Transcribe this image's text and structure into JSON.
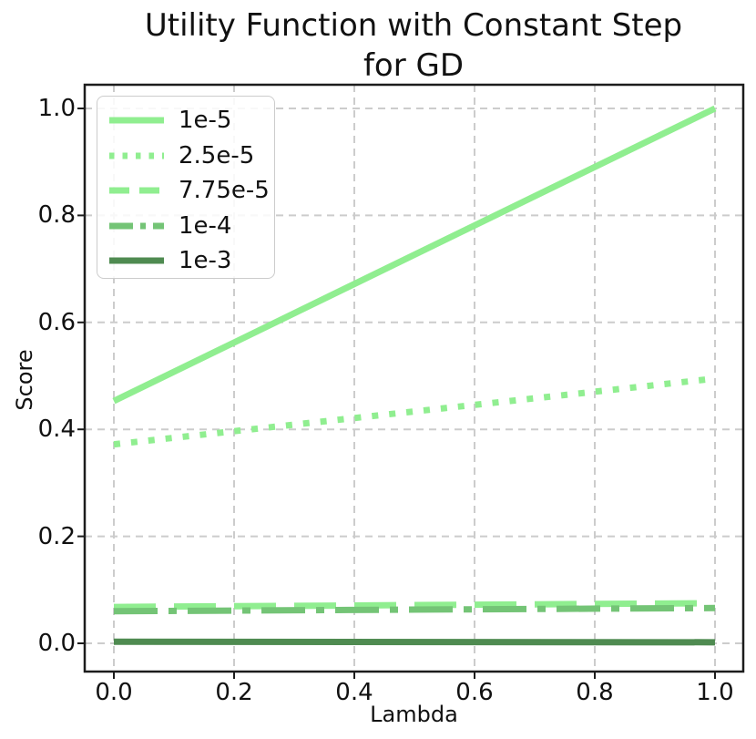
{
  "chart_data": {
    "type": "line",
    "title": "Utility Function with Constant Step\nfor GD",
    "xlabel": "Lambda",
    "ylabel": "Score",
    "xlim": [
      -0.0485,
      1.047
    ],
    "ylim": [
      -0.0528,
      1.0443
    ],
    "grid": true,
    "legend_position": "upper-left",
    "xticks": {
      "values": [
        0.0,
        0.2,
        0.4,
        0.6,
        0.8,
        1.0
      ],
      "labels": [
        "0.0",
        "0.2",
        "0.4",
        "0.6",
        "0.8",
        "1.0"
      ]
    },
    "yticks": {
      "values": [
        0.0,
        0.2,
        0.4,
        0.6,
        0.8,
        1.0
      ],
      "labels": [
        "0.0",
        "0.2",
        "0.4",
        "0.6",
        "0.8",
        "1.0"
      ]
    },
    "series": [
      {
        "name": "1e-5",
        "linestyle": "solid",
        "color": "#90EE90",
        "x": [
          0.0,
          1.0
        ],
        "y": [
          0.453,
          1.0
        ]
      },
      {
        "name": "2.5e-5",
        "linestyle": "dotted",
        "color": "#90EE90",
        "x": [
          0.0,
          1.0
        ],
        "y": [
          0.372,
          0.495
        ]
      },
      {
        "name": "7.75e-5",
        "linestyle": "dashed",
        "color": "#90EE90",
        "x": [
          0.0,
          1.0
        ],
        "y": [
          0.068,
          0.075
        ]
      },
      {
        "name": "1e-4",
        "linestyle": "dashdot",
        "color": "#74C476",
        "x": [
          0.0,
          1.0
        ],
        "y": [
          0.06,
          0.066
        ]
      },
      {
        "name": "1e-3",
        "linestyle": "solid",
        "color": "#4F8B51",
        "x": [
          0.0,
          1.0
        ],
        "y": [
          0.003,
          0.002
        ]
      }
    ],
    "style": {
      "grid_color": "#cccccc",
      "spine_color": "#1c1c1c",
      "text_color": "#111111",
      "line_width": 7
    }
  }
}
